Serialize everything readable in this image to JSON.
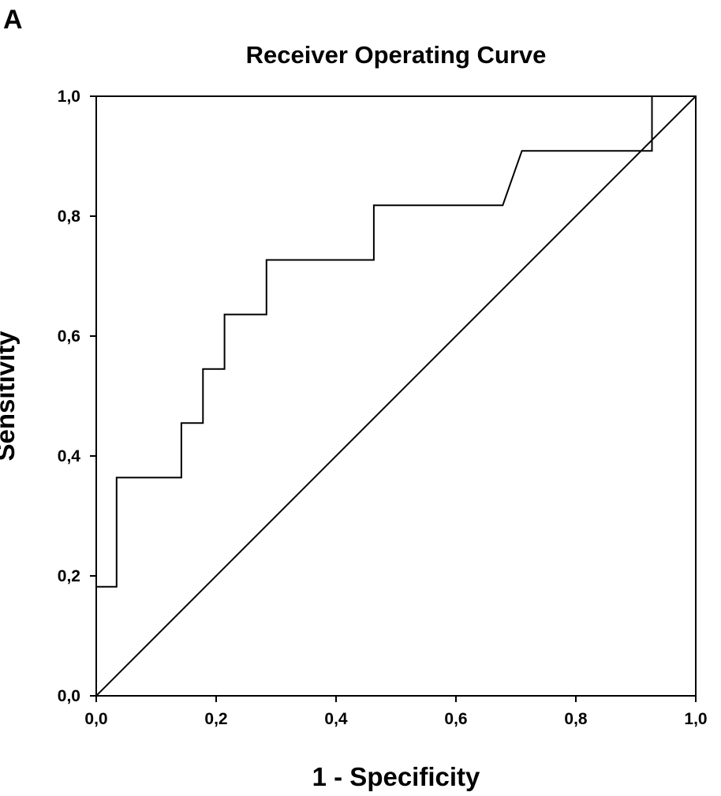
{
  "panel_label": "A",
  "chart_data": {
    "type": "line",
    "title": "Receiver Operating Curve",
    "xlabel": "1 - Specificity",
    "ylabel": "Sensitivity",
    "xlim": [
      0,
      1
    ],
    "ylim": [
      0,
      1
    ],
    "xticks": [
      0,
      0.2,
      0.4,
      0.6,
      0.8,
      1
    ],
    "yticks": [
      0,
      0.2,
      0.4,
      0.6,
      0.8,
      1
    ],
    "xtick_labels": [
      "0,0",
      "0,2",
      "0,4",
      "0,6",
      "0,8",
      "1,0"
    ],
    "ytick_labels": [
      "0,0",
      "0,2",
      "0,4",
      "0,6",
      "0,8",
      "1,0"
    ],
    "grid": false,
    "legend": "none",
    "series": [
      {
        "x": [
          0.0,
          0.0,
          0.034,
          0.034,
          0.142,
          0.142,
          0.178,
          0.178,
          0.214,
          0.214,
          0.284,
          0.284,
          0.463,
          0.463,
          0.678,
          0.71,
          0.927,
          0.927,
          1.0
        ],
        "y": [
          0.0,
          0.182,
          0.182,
          0.364,
          0.364,
          0.455,
          0.455,
          0.545,
          0.545,
          0.636,
          0.636,
          0.727,
          0.727,
          0.818,
          0.818,
          0.909,
          0.909,
          1.0,
          1.0
        ],
        "color": "#000000"
      },
      {
        "x": [
          0,
          1
        ],
        "y": [
          0,
          1
        ],
        "color": "#000000"
      }
    ]
  }
}
